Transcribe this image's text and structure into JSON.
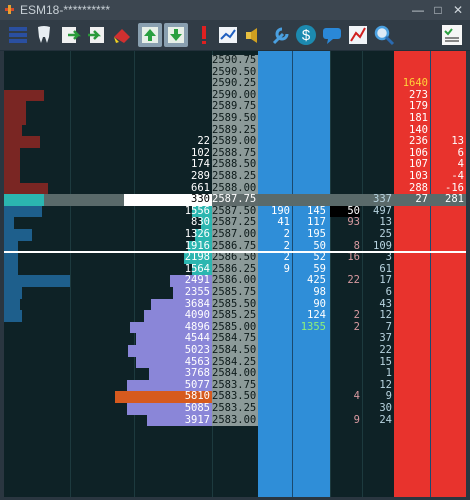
{
  "window": {
    "title": "ESM18-**********"
  },
  "titlebar_buttons": [
    "minimize-icon",
    "maximize-icon",
    "close-icon"
  ],
  "toolbar": {
    "buttons": [
      {
        "name": "grid-layout-icon"
      },
      {
        "name": "tooth-icon"
      },
      {
        "name": "export-icon"
      },
      {
        "name": "import-icon"
      },
      {
        "name": "erase-icon"
      },
      {
        "name": "center-up-icon",
        "pressed": true
      },
      {
        "name": "center-down-icon",
        "pressed": true
      },
      {
        "name": "alert-icon"
      },
      {
        "name": "chart-icon"
      },
      {
        "name": "sound-icon"
      },
      {
        "name": "wrench-icon"
      },
      {
        "name": "dollar-icon"
      },
      {
        "name": "speech-icon"
      },
      {
        "name": "trend-icon"
      },
      {
        "name": "search-icon"
      },
      {
        "name": "checklist-icon"
      }
    ]
  },
  "colors": {
    "price_bg": "#8c9a99",
    "price_current": "#5f6b6b",
    "blue_col": "#2f8ed8",
    "red_col": "#e8332d",
    "ask_bar": "#7a2623",
    "bid_bar": "#1e5f8c",
    "volume_bar": "#8a86d8",
    "highlight_bar": "#d65a1e",
    "teal": "#2bb6b0"
  },
  "ladder": {
    "rows": [
      {
        "price": "2590.75",
        "v": "",
        "ask": "",
        "b1": "",
        "b2": "",
        "c1": "",
        "c2": "",
        "r1": "",
        "r2": "",
        "vbar": 0,
        "abar": 0
      },
      {
        "price": "2590.50",
        "v": "",
        "ask": "",
        "b1": "",
        "b2": "",
        "c1": "",
        "c2": "",
        "r1": "",
        "r2": "",
        "vbar": 0,
        "abar": 0
      },
      {
        "price": "2590.25",
        "v": "",
        "ask": "",
        "b1": "",
        "b2": "",
        "c1": "",
        "c2": "",
        "r1": "1640",
        "r2": "",
        "vbar": 0,
        "abar": 0,
        "r1c": "#ffd23a"
      },
      {
        "price": "2590.00",
        "v": "",
        "b1": "",
        "b2": "",
        "c1": "",
        "c2": "",
        "r1": "273",
        "r2": "",
        "vbar": 0,
        "abar": 40
      },
      {
        "price": "2589.75",
        "v": "",
        "b1": "",
        "b2": "",
        "c1": "",
        "c2": "",
        "r1": "179",
        "r2": "",
        "vbar": 0,
        "abar": 22
      },
      {
        "price": "2589.50",
        "v": "",
        "b1": "",
        "b2": "",
        "c1": "",
        "c2": "",
        "r1": "181",
        "r2": "",
        "vbar": 0,
        "abar": 22
      },
      {
        "price": "2589.25",
        "v": "",
        "b1": "",
        "b2": "",
        "c1": "",
        "c2": "",
        "r1": "140",
        "r2": "",
        "vbar": 0,
        "abar": 18
      },
      {
        "price": "2589.00",
        "v": "22",
        "b1": "",
        "b2": "",
        "c1": "",
        "c2": "",
        "r1": "236",
        "r2": "13",
        "vbar": 0,
        "abar": 36
      },
      {
        "price": "2588.75",
        "v": "102",
        "b1": "",
        "b2": "",
        "c1": "",
        "c2": "",
        "r1": "106",
        "r2": "6",
        "vbar": 0,
        "abar": 16
      },
      {
        "price": "2588.50",
        "v": "174",
        "b1": "",
        "b2": "",
        "c1": "",
        "c2": "",
        "r1": "107",
        "r2": "4",
        "vbar": 0,
        "abar": 16
      },
      {
        "price": "2588.25",
        "v": "289",
        "b1": "",
        "b2": "",
        "c1": "",
        "c2": "",
        "r1": "103",
        "r2": "-4",
        "vbar": 0,
        "abar": 16
      },
      {
        "price": "2588.00",
        "v": "661",
        "b1": "",
        "b2": "",
        "c1": "",
        "c2": "",
        "r1": "288",
        "r2": "-16",
        "vbar": 0,
        "abar": 44
      },
      {
        "price": "2587.75",
        "v": "330",
        "b1": "",
        "b2": "",
        "c1": "",
        "c2": "337",
        "r1": "27",
        "r2": "281",
        "vbar": 0,
        "abar": 0,
        "current": true
      },
      {
        "price": "2587.50",
        "v": "1556",
        "b1": "190",
        "b2": "145",
        "c1": "50",
        "c2": "497",
        "r1": "",
        "r2": "",
        "vbar": 0,
        "bbar": 38
      },
      {
        "price": "2587.25",
        "v": "830",
        "b1": "41",
        "b2": "117",
        "c1": "93",
        "c2": "13",
        "r1": "",
        "r2": "",
        "vbar": 0,
        "bbar": 10
      },
      {
        "price": "2587.00",
        "v": "1326",
        "b1": "2",
        "b2": "195",
        "c1": "",
        "c2": "25",
        "r1": "",
        "r2": "",
        "vbar": 0,
        "bbar": 28
      },
      {
        "price": "2586.75",
        "v": "1916",
        "b1": "2",
        "b2": "50",
        "c1": "8",
        "c2": "109",
        "r1": "",
        "r2": "",
        "vbar": 0,
        "bbar": 14
      },
      {
        "price": "2586.50",
        "v": "2198",
        "b1": "2",
        "b2": "52",
        "c1": "16",
        "c2": "3",
        "r1": "",
        "r2": "",
        "vbar": 0,
        "bbar": 14
      },
      {
        "price": "2586.25",
        "v": "1564",
        "b1": "9",
        "b2": "59",
        "c1": "",
        "c2": "61",
        "r1": "",
        "r2": "",
        "vbar": 0,
        "bbar": 14
      },
      {
        "price": "2586.00",
        "v": "2491",
        "b1": "",
        "b2": "425",
        "c1": "22",
        "c2": "17",
        "r1": "",
        "r2": "",
        "vbar": 2491,
        "bbar": 66
      },
      {
        "price": "2585.75",
        "v": "2355",
        "b1": "",
        "b2": "98",
        "c1": "",
        "c2": "6",
        "r1": "",
        "r2": "",
        "vbar": 2355,
        "bbar": 18
      },
      {
        "price": "2585.50",
        "v": "3684",
        "b1": "",
        "b2": "90",
        "c1": "",
        "c2": "43",
        "r1": "",
        "r2": "",
        "vbar": 3684,
        "bbar": 16
      },
      {
        "price": "2585.25",
        "v": "4090",
        "b1": "",
        "b2": "124",
        "c1": "2",
        "c2": "12",
        "r1": "",
        "r2": "",
        "vbar": 4090,
        "bbar": 18
      },
      {
        "price": "2585.00",
        "v": "4896",
        "b1": "",
        "b2": "1355",
        "c1": "2",
        "c2": "7",
        "r1": "",
        "r2": "",
        "vbar": 4896,
        "bbar": 0,
        "b2c": "#8ef07a"
      },
      {
        "price": "2584.75",
        "v": "4544",
        "b1": "",
        "b2": "",
        "c1": "",
        "c2": "37",
        "r1": "",
        "r2": "",
        "vbar": 4544
      },
      {
        "price": "2584.50",
        "v": "5023",
        "b1": "",
        "b2": "",
        "c1": "",
        "c2": "22",
        "r1": "",
        "r2": "",
        "vbar": 5023
      },
      {
        "price": "2584.25",
        "v": "4563",
        "b1": "",
        "b2": "",
        "c1": "",
        "c2": "15",
        "r1": "",
        "r2": "",
        "vbar": 4563
      },
      {
        "price": "2584.00",
        "v": "3768",
        "b1": "",
        "b2": "",
        "c1": "",
        "c2": "1",
        "r1": "",
        "r2": "",
        "vbar": 3768
      },
      {
        "price": "2583.75",
        "v": "5077",
        "b1": "",
        "b2": "",
        "c1": "",
        "c2": "12",
        "r1": "",
        "r2": "",
        "vbar": 5077
      },
      {
        "price": "2583.50",
        "v": "5810",
        "b1": "",
        "b2": "",
        "c1": "4",
        "c2": "9",
        "r1": "",
        "r2": "",
        "vbar": 5810,
        "hl": true
      },
      {
        "price": "2583.25",
        "v": "5085",
        "b1": "",
        "b2": "",
        "c1": "",
        "c2": "30",
        "r1": "",
        "r2": "",
        "vbar": 5085
      },
      {
        "price": "2583.00",
        "v": "3917",
        "b1": "",
        "b2": "",
        "c1": "9",
        "c2": "24",
        "r1": "",
        "r2": "",
        "vbar": 3917
      }
    ]
  }
}
